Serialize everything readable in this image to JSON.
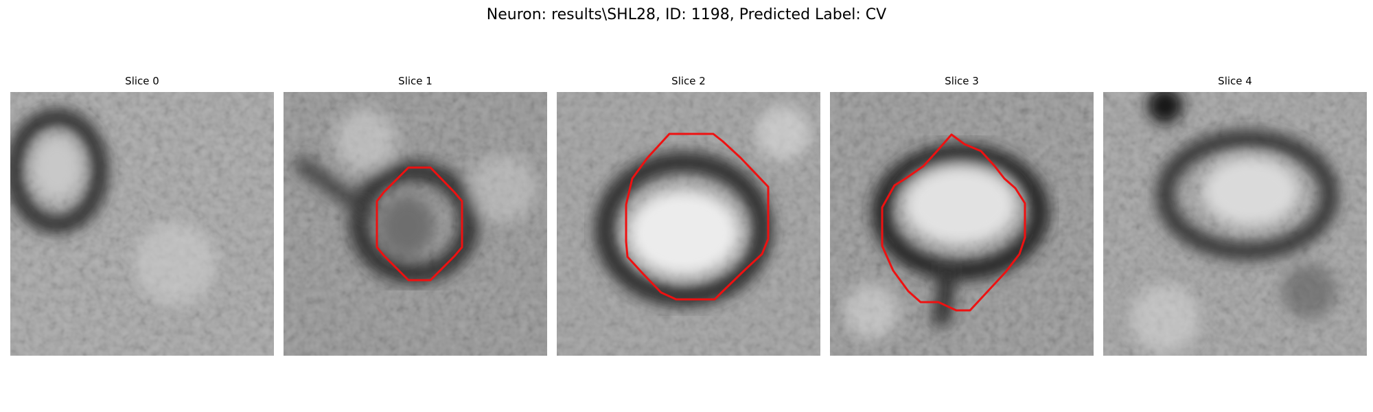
{
  "figure": {
    "title": "Neuron: results\\SHL28, ID: 1198, Predicted Label: CV"
  },
  "slices": [
    {
      "label": "Slice 0",
      "has_outline": false
    },
    {
      "label": "Slice 1",
      "has_outline": true
    },
    {
      "label": "Slice 2",
      "has_outline": true
    },
    {
      "label": "Slice 3",
      "has_outline": true
    },
    {
      "label": "Slice 4",
      "has_outline": false
    }
  ],
  "colors": {
    "outline": "#ee1111",
    "background": "#ffffff"
  }
}
